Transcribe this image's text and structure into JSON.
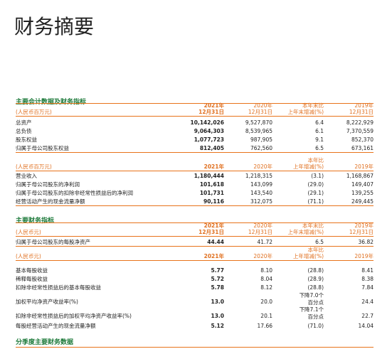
{
  "title": "财务摘要",
  "sections": [
    {
      "title": "主要会计数据及财务指标",
      "tables": [
        {
          "unit": "(人民币百万元)",
          "headers": [
            [
              "2021年",
              "12月31日"
            ],
            [
              "2020年",
              "12月31日"
            ],
            [
              "本年末比",
              "上年末增减(%)"
            ],
            [
              "2019年",
              "12月31日"
            ]
          ],
          "rows": [
            {
              "label": "总资产",
              "cells": [
                "10,142,026",
                "9,527,870",
                "6.4",
                "8,222,929"
              ]
            },
            {
              "label": "总负债",
              "cells": [
                "9,064,303",
                "8,539,965",
                "6.1",
                "7,370,559"
              ]
            },
            {
              "label": "股东权益",
              "cells": [
                "1,077,723",
                "987,905",
                "9.1",
                "852,370"
              ]
            },
            {
              "label": "归属于母公司股东权益",
              "cells": [
                "812,405",
                "762,560",
                "6.5",
                "673,161"
              ]
            }
          ]
        },
        {
          "unit": "(人民币百万元)",
          "headers": [
            [
              "2021年"
            ],
            [
              "2020年"
            ],
            [
              "本年比",
              "上年增减(%)"
            ],
            [
              "2019年"
            ]
          ],
          "rows": [
            {
              "label": "营业收入",
              "cells": [
                "1,180,444",
                "1,218,315",
                "(3.1)",
                "1,168,867"
              ]
            },
            {
              "label": "归属于母公司股东的净利润",
              "cells": [
                "101,618",
                "143,099",
                "(29.0)",
                "149,407"
              ]
            },
            {
              "label": "归属于母公司股东的扣除非经常性损益后的净利润",
              "cells": [
                "101,731",
                "143,540",
                "(29.1)",
                "139,255"
              ]
            },
            {
              "label": "经营活动产生的现金流量净额",
              "cells": [
                "90,116",
                "312,075",
                "(71.1)",
                "249,445"
              ]
            }
          ]
        }
      ]
    },
    {
      "title": "主要财务指标",
      "tables": [
        {
          "unit": "(人民币元)",
          "headers": [
            [
              "2021年",
              "12月31日"
            ],
            [
              "2020年",
              "12月31日"
            ],
            [
              "本年末比",
              "上年末增减(%)"
            ],
            [
              "2019年",
              "12月31日"
            ]
          ],
          "rows": [
            {
              "label": "归属于母公司股东的每股净资产",
              "cells": [
                "44.44",
                "41.72",
                "6.5",
                "36.82"
              ]
            }
          ]
        },
        {
          "unit": "(人民币元)",
          "headers": [
            [
              "2021年"
            ],
            [
              "2020年"
            ],
            [
              "本年比",
              "上年增减(%)"
            ],
            [
              "2019年"
            ]
          ],
          "rows": [
            {
              "label": "基本每股收益",
              "cells": [
                "5.77",
                "8.10",
                "(28.8)",
                "8.41"
              ]
            },
            {
              "label": "稀释每股收益",
              "cells": [
                "5.72",
                "8.04",
                "(28.9)",
                "8.38"
              ]
            },
            {
              "label": "扣除非经常性损益后的基本每股收益",
              "cells": [
                "5.78",
                "8.12",
                "(28.8)",
                "7.84"
              ]
            },
            {
              "label": "加权平均净资产收益率(%)",
              "cells": [
                "13.0",
                "20.0",
                [
                  "下降7.0个",
                  "百分点"
                ],
                "24.4"
              ]
            },
            {
              "label": "扣除非经常性损益后的加权平均净资产收益率(%)",
              "cells": [
                "13.0",
                "20.1",
                [
                  "下降7.1个",
                  "百分点"
                ],
                "22.7"
              ]
            },
            {
              "label": "每股经营活动产生的现金流量净额",
              "cells": [
                "5.12",
                "17.66",
                "(71.0)",
                "14.04"
              ]
            }
          ]
        }
      ]
    },
    {
      "title": "分季度主要财务数据",
      "tables": []
    }
  ]
}
